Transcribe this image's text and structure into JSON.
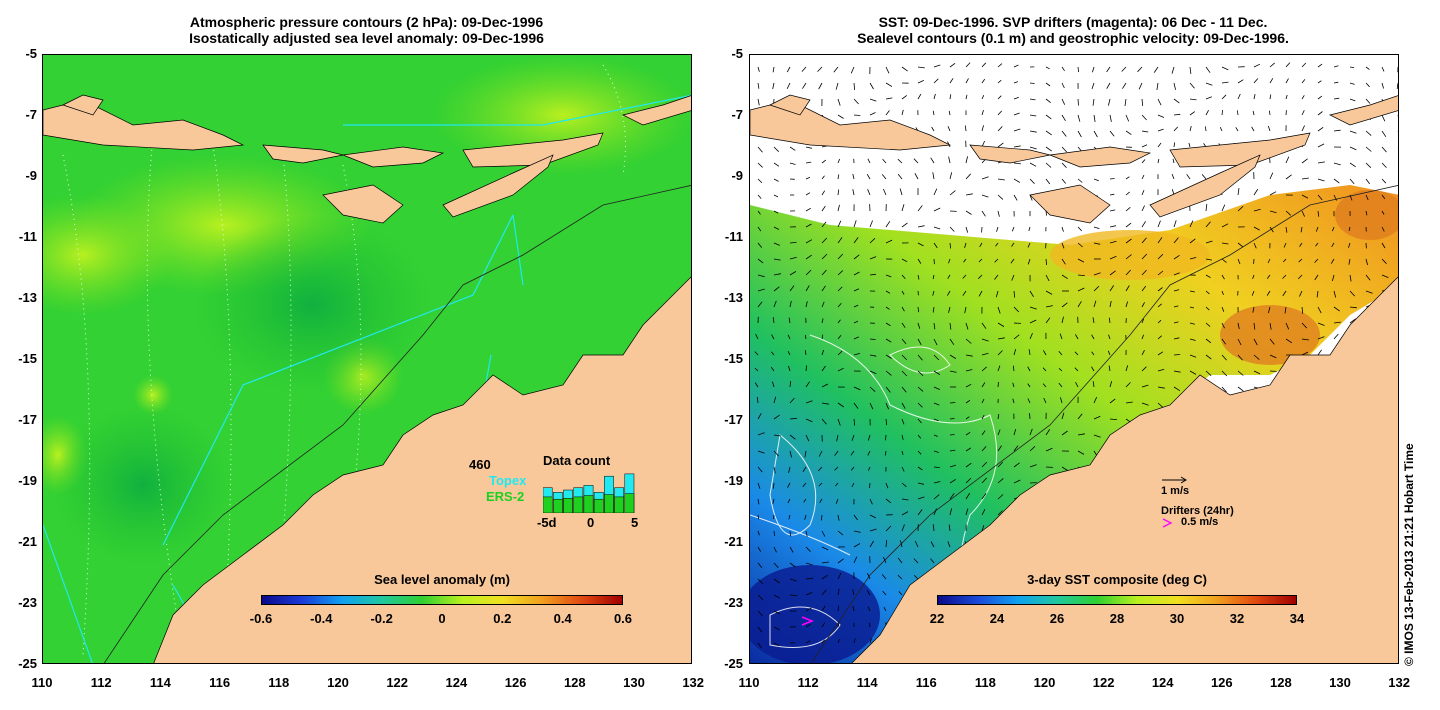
{
  "left_panel": {
    "title_line1": "Atmospheric pressure contours (2 hPa): 09-Dec-1996",
    "title_line2": "Isostatically adjusted sea level anomaly: 09-Dec-1996",
    "colorbar_title": "Sea level anomaly (m)",
    "colorbar_ticks": [
      "-0.6",
      "-0.4",
      "-0.2",
      "0",
      "0.2",
      "0.4",
      "0.6"
    ],
    "data_count": {
      "title": "Data count",
      "count": "460",
      "topex_label": "Topex",
      "ers_label": "ERS-2",
      "x_ticks": [
        "-5d",
        "0",
        "5"
      ],
      "topex_colour": "#22e8f0",
      "ers_colour": "#20d020",
      "topex_values": [
        0.55,
        0.45,
        0.5,
        0.55,
        0.6,
        0.45,
        0.8,
        0.55,
        0.85
      ],
      "ers_values": [
        0.35,
        0.3,
        0.32,
        0.35,
        0.38,
        0.3,
        0.4,
        0.35,
        0.42
      ]
    }
  },
  "right_panel": {
    "title_line1": "SST: 09-Dec-1996. SVP drifters (magenta): 06 Dec - 11 Dec.",
    "title_line2": "Sealevel contours (0.1 m) and geostrophic velocity: 09-Dec-1996.",
    "colorbar_title": "3-day SST composite (deg C)",
    "colorbar_ticks": [
      "22",
      "24",
      "26",
      "28",
      "30",
      "32",
      "34"
    ],
    "vector_scale_label": "1 m/s",
    "drifters_label": "Drifters (24hr)",
    "drifter_scale_label": "0.5 m/s",
    "drifter_colour": "#ff00ff"
  },
  "axes": {
    "y_ticks": [
      "-5",
      "-7",
      "-9",
      "-11",
      "-13",
      "-15",
      "-17",
      "-19",
      "-21",
      "-23",
      "-25"
    ],
    "x_ticks": [
      "110",
      "112",
      "114",
      "116",
      "118",
      "120",
      "122",
      "124",
      "126",
      "128",
      "130",
      "132"
    ]
  },
  "colours": {
    "land": "#f8c89a",
    "slа_background": "#33d133",
    "sst_background": "#ffffff"
  },
  "credit": "© IMOS 13-Feb-2013 21:21 Hobart Time"
}
